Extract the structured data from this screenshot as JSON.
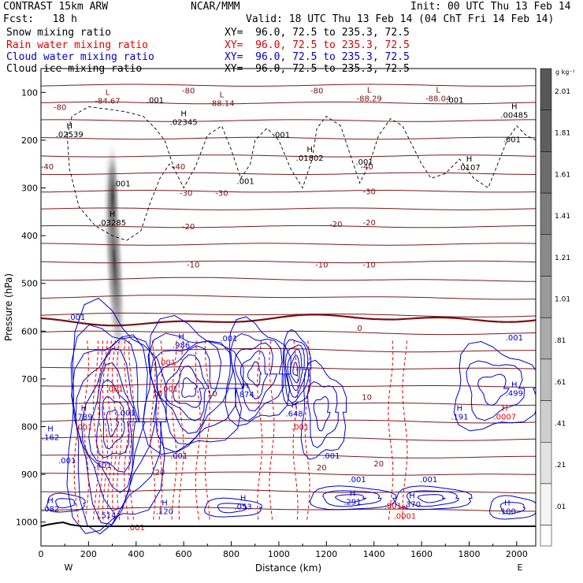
{
  "header": {
    "model": "CONTRAST 15km ARW",
    "center": "NCAR/MMM",
    "init": "Init: 00 UTC Thu 13 Feb 14",
    "fcst": "Fcst:   18 h",
    "valid": "Valid: 18 UTC Thu 13 Feb 14 (04 ChT Fri 14 Feb 14)"
  },
  "fields": [
    {
      "label": "Snow mixing ratio",
      "xy": "XY=  96.0, 72.5 to 235.3, 72.5",
      "color": "#000000"
    },
    {
      "label": "Rain water mixing ratio",
      "xy": "XY=  96.0, 72.5 to 235.3, 72.5",
      "color": "#e00000"
    },
    {
      "label": "Cloud water mixing ratio",
      "xy": "XY=  96.0, 72.5 to 235.3, 72.5",
      "color": "#0000cc"
    },
    {
      "label": "Cloud ice mixing ratio",
      "xy": "XY=  96.0, 72.5 to 235.3, 72.5",
      "color": "#000000"
    }
  ],
  "chart_data": {
    "type": "contour cross-section",
    "xlabel": "Distance (km)",
    "ylabel": "Pressure (hPa)",
    "xlim": [
      0,
      2080
    ],
    "ylim": [
      1050,
      50
    ],
    "x_ticks": [
      "0",
      "200",
      "400",
      "600",
      "800",
      "1000",
      "1200",
      "1400",
      "1600",
      "1800",
      "2000"
    ],
    "y_ticks": [
      "100",
      "200",
      "300",
      "400",
      "500",
      "600",
      "700",
      "800",
      "900",
      "1000"
    ],
    "x_endpoints": [
      "W",
      "E"
    ],
    "colorbar": {
      "unit": "g kg⁻¹",
      "levels": [
        "2.01",
        "1.81",
        "1.61",
        "1.41",
        "1.21",
        "1.01",
        ".81",
        ".61",
        ".41",
        ".21",
        ".01"
      ],
      "grays": [
        "#575757",
        "#5e5e5e",
        "#6c6c6c",
        "#7b7b7b",
        "#8a8a8a",
        "#9a9a9a",
        "#ababab",
        "#bdbdbd",
        "#cfcfcf",
        "#e2e2e2",
        "#f4f4f4"
      ]
    },
    "temperature_isotherms": [
      "-80",
      "-40",
      "-30",
      "-20",
      "-10",
      "0",
      "10",
      "20"
    ],
    "temperature_labels": [
      {
        "text": "-80",
        "x": 80,
        "p": 130
      },
      {
        "text": "-80",
        "x": 620,
        "p": 95
      },
      {
        "text": "-80",
        "x": 1160,
        "p": 95
      },
      {
        "text": "-40",
        "x": -20,
        "p": 255
      },
      {
        "text": "-40",
        "x": 580,
        "p": 255
      },
      {
        "text": "-40",
        "x": 1370,
        "p": 255
      },
      {
        "text": "-30",
        "x": 610,
        "p": 310
      },
      {
        "text": "-30",
        "x": 760,
        "p": 310
      },
      {
        "text": "-30",
        "x": 1380,
        "p": 307
      },
      {
        "text": "-20",
        "x": 620,
        "p": 380
      },
      {
        "text": "-20",
        "x": 1240,
        "p": 375
      },
      {
        "text": "-20",
        "x": 1380,
        "p": 372
      },
      {
        "text": "-10",
        "x": 640,
        "p": 460
      },
      {
        "text": "-10",
        "x": 1180,
        "p": 460
      },
      {
        "text": "-10",
        "x": 1380,
        "p": 460
      },
      {
        "text": "0",
        "x": 1340,
        "p": 593
      },
      {
        "text": "10",
        "x": 490,
        "p": 730
      },
      {
        "text": "10",
        "x": 720,
        "p": 730
      },
      {
        "text": "10",
        "x": 1370,
        "p": 737
      },
      {
        "text": "20",
        "x": 500,
        "p": 895
      },
      {
        "text": "20",
        "x": 1180,
        "p": 885
      },
      {
        "text": "20",
        "x": 1420,
        "p": 877
      }
    ],
    "extrema_labels": [
      {
        "kind": "L",
        "value": "-84.67",
        "x": 280,
        "p": 115,
        "color": "#7a1010"
      },
      {
        "kind": "L",
        "value": "-88.14",
        "x": 760,
        "p": 120,
        "color": "#7a1010"
      },
      {
        "kind": "L",
        "value": "-88.29",
        "x": 1380,
        "p": 110,
        "color": "#7a1010"
      },
      {
        "kind": "L",
        "value": "-88.04",
        "x": 1670,
        "p": 110,
        "color": "#7a1010"
      },
      {
        "kind": "H",
        "value": ".02539",
        "x": 120,
        "p": 185,
        "color": "#000000"
      },
      {
        "kind": "H",
        "value": ".02345",
        "x": 600,
        "p": 160,
        "color": "#000000"
      },
      {
        "kind": "H",
        "value": ".01802",
        "x": 1130,
        "p": 235,
        "color": "#000000"
      },
      {
        "kind": "H",
        "value": ".0107",
        "x": 1800,
        "p": 255,
        "color": "#000000"
      },
      {
        "kind": "H",
        "value": ".00485",
        "x": 1990,
        "p": 145,
        "color": "#000000"
      },
      {
        "kind": "H",
        "value": ".03285",
        "x": 300,
        "p": 370,
        "color": "#000000"
      },
      {
        "kind": "H",
        "value": ".986",
        "x": 590,
        "p": 627,
        "color": "#0000cc"
      },
      {
        "kind": "H",
        "value": ".874",
        "x": 860,
        "p": 730,
        "color": "#0000cc"
      },
      {
        "kind": "H",
        "value": ".648",
        "x": 1065,
        "p": 770,
        "color": "#0000cc"
      },
      {
        "kind": "H",
        "value": ".789",
        "x": 180,
        "p": 777,
        "color": "#0000cc"
      },
      {
        "kind": "H",
        "value": ".162",
        "x": 40,
        "p": 820,
        "color": "#0000cc"
      },
      {
        "kind": "H",
        "value": ".191",
        "x": 1760,
        "p": 777,
        "color": "#0000cc"
      },
      {
        "kind": "H",
        "value": ".499",
        "x": 1990,
        "p": 727,
        "color": "#0000cc"
      },
      {
        "kind": "H",
        "value": ".0007",
        "x": 1950,
        "p": 777,
        "color": "#e00000"
      },
      {
        "kind": "H",
        "value": ".082",
        "x": 40,
        "p": 970,
        "color": "#0000cc"
      },
      {
        "kind": "H",
        "value": ".120",
        "x": 520,
        "p": 975,
        "color": "#0000cc"
      },
      {
        "kind": "H",
        "value": ".053",
        "x": 850,
        "p": 965,
        "color": "#0000cc"
      },
      {
        "kind": "H",
        "value": ".291",
        "x": 1310,
        "p": 955,
        "color": "#0000cc"
      },
      {
        "kind": "H",
        "value": ".370",
        "x": 1560,
        "p": 960,
        "color": "#0000cc"
      },
      {
        "kind": "H",
        "value": ".100",
        "x": 1960,
        "p": 975,
        "color": "#0000cc"
      },
      {
        "kind": "H",
        "value": ".0001",
        "x": 1530,
        "p": 985,
        "color": "#e00000"
      }
    ],
    "contour_labels": [
      {
        "text": ".001",
        "x": 480,
        "p": 115,
        "color": "#000000"
      },
      {
        "text": ".001",
        "x": 1010,
        "p": 188,
        "color": "#000000"
      },
      {
        "text": ".001",
        "x": 860,
        "p": 285,
        "color": "#000000"
      },
      {
        "text": ".001",
        "x": 340,
        "p": 290,
        "color": "#000000"
      },
      {
        "text": ".001",
        "x": 1360,
        "p": 245,
        "color": "#000000"
      },
      {
        "text": ".001",
        "x": 1740,
        "p": 115,
        "color": "#000000"
      },
      {
        "text": ".001",
        "x": 1980,
        "p": 198,
        "color": "#000000"
      },
      {
        "text": ".001",
        "x": 150,
        "p": 570,
        "color": "#0000cc"
      },
      {
        "text": ".001",
        "x": 790,
        "p": 614,
        "color": "#0000cc"
      },
      {
        "text": ".001",
        "x": 1990,
        "p": 613,
        "color": "#0000cc"
      },
      {
        "text": ".001",
        "x": 360,
        "p": 770,
        "color": "#0000cc"
      },
      {
        "text": ".001",
        "x": 580,
        "p": 860,
        "color": "#0000cc"
      },
      {
        "text": ".001",
        "x": 1220,
        "p": 860,
        "color": "#0000cc"
      },
      {
        "text": ".001",
        "x": 110,
        "p": 870,
        "color": "#0000cc"
      },
      {
        "text": ".001",
        "x": 1330,
        "p": 910,
        "color": "#0000cc"
      },
      {
        "text": ".001",
        "x": 1630,
        "p": 910,
        "color": "#0000cc"
      },
      {
        "text": ".401",
        "x": 260,
        "p": 880,
        "color": "#0000cc"
      },
      {
        "text": ".514",
        "x": 280,
        "p": 985,
        "color": "#0000cc"
      },
      {
        "text": ".001",
        "x": 530,
        "p": 665,
        "color": "#e00000"
      },
      {
        "text": ".001",
        "x": 540,
        "p": 720,
        "color": "#e00000"
      },
      {
        "text": ".001",
        "x": 310,
        "p": 720,
        "color": "#e00000"
      },
      {
        "text": ".001",
        "x": 180,
        "p": 800,
        "color": "#e00000"
      },
      {
        "text": ".001",
        "x": 1090,
        "p": 800,
        "color": "#e00000"
      },
      {
        "text": ".001",
        "x": 400,
        "p": 1010,
        "color": "#e00000"
      },
      {
        "text": ".001",
        "x": 1480,
        "p": 965,
        "color": "#e00000"
      }
    ]
  }
}
